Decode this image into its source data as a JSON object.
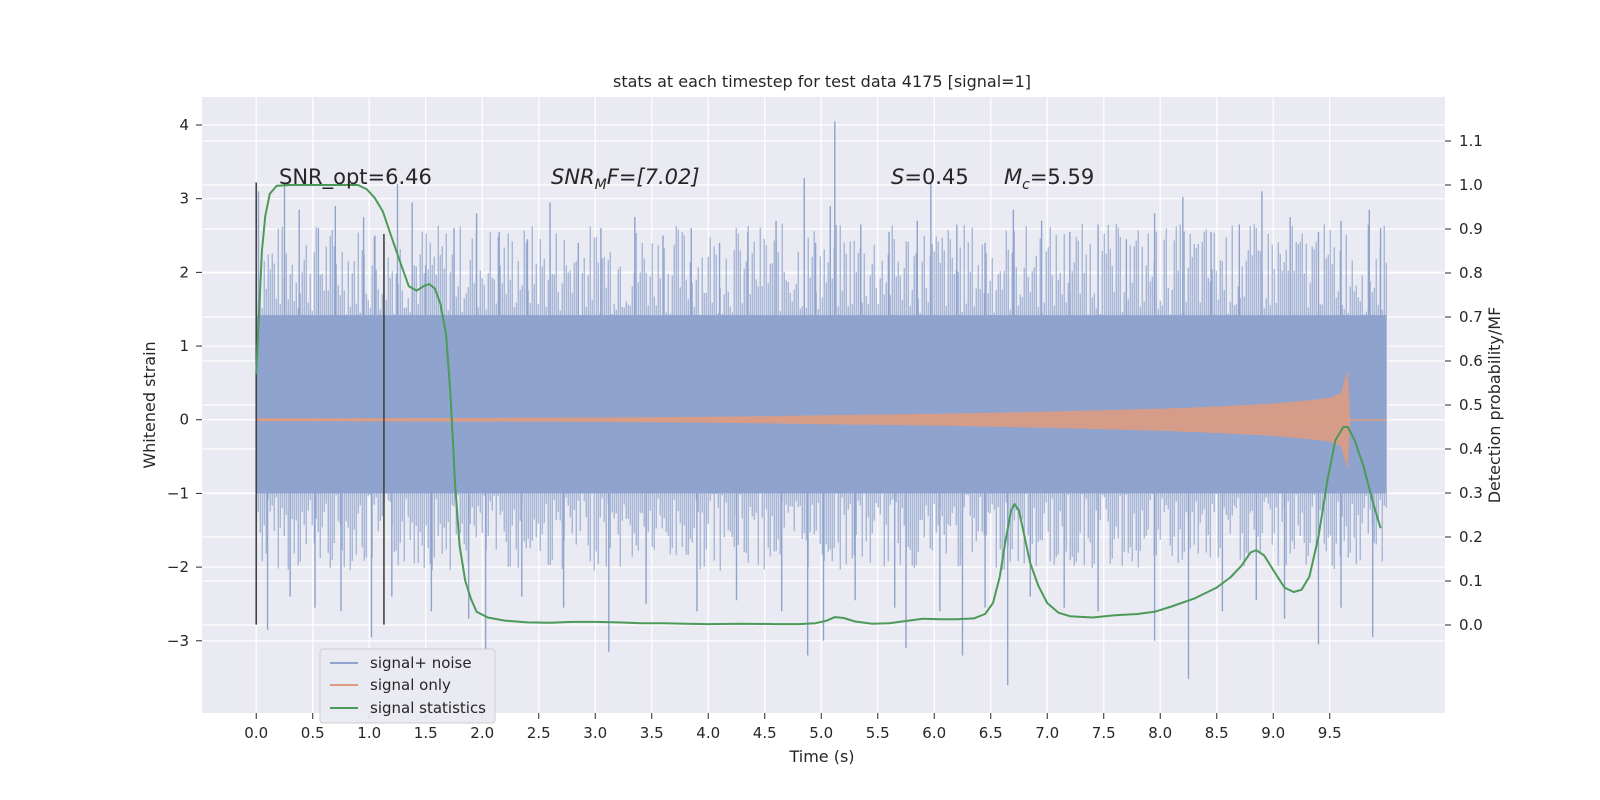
{
  "chart_data": {
    "type": "line",
    "title": "stats at each timestep for test data 4175 [signal=1]",
    "xlabel": "Time (s)",
    "ylabel": "Whitened strain",
    "ylabel_right": "Detection probability/MF",
    "xlim": [
      -0.48,
      10.52
    ],
    "ylim": [
      -3.98,
      4.38
    ],
    "ylim_right": [
      -0.2,
      1.2
    ],
    "x_ticks": [
      "0.0",
      "0.5",
      "1.0",
      "1.5",
      "2.0",
      "2.5",
      "3.0",
      "3.5",
      "4.0",
      "4.5",
      "5.0",
      "5.5",
      "6.0",
      "6.5",
      "7.0",
      "7.5",
      "8.0",
      "8.5",
      "9.0",
      "9.5"
    ],
    "y_ticks": [
      "4",
      "3",
      "2",
      "1",
      "0",
      "−1",
      "−2",
      "−3"
    ],
    "y_ticks_right": [
      "1.1",
      "1.0",
      "0.9",
      "0.8",
      "0.7",
      "0.6",
      "0.5",
      "0.4",
      "0.3",
      "0.2",
      "0.1",
      "0.0"
    ],
    "grid": true,
    "legend_position": "lower-left",
    "annotations": {
      "snr_opt": "SNR_opt=6.46",
      "snr_mf_base": "SNR",
      "snr_mf_sub": "M",
      "snr_mf_rest": "F=[7.02]",
      "s_sym": "S",
      "s_rest": "=0.45",
      "mc_sym": "M",
      "mc_sub": "c",
      "mc_rest": "=5.59"
    },
    "vertical_markers": [
      {
        "x": 0.0,
        "y_range": [
          -2.78,
          3.22
        ]
      },
      {
        "x": 1.13,
        "y_range": [
          -2.78,
          2.52
        ]
      }
    ],
    "series": [
      {
        "name": "signal+ noise",
        "color": "#8ea3cd",
        "axis": "left",
        "x_range": [
          0.0,
          10.0
        ],
        "band": [
          -1.0,
          1.42
        ],
        "spikes_up": [
          [
            0.02,
            3.1
          ],
          [
            0.25,
            3.22
          ],
          [
            0.38,
            2.85
          ],
          [
            0.55,
            2.6
          ],
          [
            0.7,
            2.9
          ],
          [
            0.95,
            2.75
          ],
          [
            1.05,
            2.5
          ],
          [
            1.25,
            3.2
          ],
          [
            1.38,
            2.95
          ],
          [
            1.5,
            2.1
          ],
          [
            1.75,
            2.6
          ],
          [
            1.95,
            2.8
          ],
          [
            2.15,
            2.55
          ],
          [
            2.4,
            2.45
          ],
          [
            2.6,
            2.95
          ],
          [
            2.85,
            2.4
          ],
          [
            3.05,
            2.6
          ],
          [
            3.35,
            2.75
          ],
          [
            3.6,
            2.5
          ],
          [
            3.85,
            2.6
          ],
          [
            4.1,
            2.4
          ],
          [
            4.35,
            2.55
          ],
          [
            4.6,
            2.7
          ],
          [
            4.85,
            3.28
          ],
          [
            4.95,
            2.4
          ],
          [
            5.08,
            2.9
          ],
          [
            5.12,
            4.05
          ],
          [
            5.35,
            2.65
          ],
          [
            5.6,
            2.55
          ],
          [
            5.85,
            2.7
          ],
          [
            5.97,
            3.22
          ],
          [
            6.2,
            2.65
          ],
          [
            6.45,
            2.4
          ],
          [
            6.7,
            2.85
          ],
          [
            6.95,
            2.7
          ],
          [
            7.2,
            2.55
          ],
          [
            7.45,
            2.65
          ],
          [
            7.7,
            2.45
          ],
          [
            7.95,
            2.8
          ],
          [
            8.2,
            3.02
          ],
          [
            8.45,
            2.55
          ],
          [
            8.7,
            2.65
          ],
          [
            8.9,
            3.1
          ],
          [
            9.15,
            2.75
          ],
          [
            9.4,
            2.55
          ],
          [
            9.6,
            2.7
          ],
          [
            9.85,
            2.85
          ],
          [
            9.95,
            2.6
          ]
        ],
        "spikes_down": [
          [
            0.1,
            -2.85
          ],
          [
            0.3,
            -2.4
          ],
          [
            0.52,
            -2.55
          ],
          [
            0.75,
            -2.6
          ],
          [
            1.02,
            -2.95
          ],
          [
            1.2,
            -2.4
          ],
          [
            1.55,
            -2.6
          ],
          [
            1.88,
            -2.7
          ],
          [
            2.03,
            -3.25
          ],
          [
            2.35,
            -2.4
          ],
          [
            2.72,
            -2.55
          ],
          [
            3.12,
            -3.15
          ],
          [
            3.45,
            -2.5
          ],
          [
            3.9,
            -2.6
          ],
          [
            4.25,
            -2.45
          ],
          [
            4.65,
            -2.6
          ],
          [
            4.88,
            -3.2
          ],
          [
            5.02,
            -3.0
          ],
          [
            5.3,
            -2.45
          ],
          [
            5.65,
            -2.55
          ],
          [
            5.75,
            -3.1
          ],
          [
            6.05,
            -2.6
          ],
          [
            6.25,
            -3.2
          ],
          [
            6.45,
            -2.55
          ],
          [
            6.65,
            -3.6
          ],
          [
            6.85,
            -2.4
          ],
          [
            7.15,
            -2.55
          ],
          [
            7.45,
            -2.6
          ],
          [
            7.95,
            -3.0
          ],
          [
            8.25,
            -3.52
          ],
          [
            8.55,
            -2.6
          ],
          [
            8.85,
            -2.45
          ],
          [
            9.1,
            -2.7
          ],
          [
            9.4,
            -3.05
          ],
          [
            9.6,
            -2.55
          ],
          [
            9.88,
            -2.95
          ]
        ]
      },
      {
        "name": "signal only",
        "color": "#dd9c82",
        "axis": "left",
        "x_range": [
          0.0,
          10.0
        ],
        "envelope": [
          [
            0.0,
            0.02
          ],
          [
            2.0,
            0.025
          ],
          [
            3.0,
            0.03
          ],
          [
            4.0,
            0.04
          ],
          [
            5.0,
            0.06
          ],
          [
            6.0,
            0.08
          ],
          [
            7.0,
            0.11
          ],
          [
            8.0,
            0.15
          ],
          [
            8.5,
            0.18
          ],
          [
            9.0,
            0.22
          ],
          [
            9.3,
            0.26
          ],
          [
            9.5,
            0.3
          ],
          [
            9.6,
            0.36
          ],
          [
            9.66,
            0.68
          ],
          [
            9.68,
            0.0
          ],
          [
            10.0,
            0.0
          ]
        ]
      },
      {
        "name": "signal statistics",
        "color": "#4c9a59",
        "axis": "right",
        "points": [
          [
            0.0,
            0.57
          ],
          [
            0.05,
            0.85
          ],
          [
            0.08,
            0.93
          ],
          [
            0.12,
            0.98
          ],
          [
            0.18,
            0.998
          ],
          [
            0.3,
            1.0
          ],
          [
            0.6,
            1.0
          ],
          [
            0.9,
            1.0
          ],
          [
            0.98,
            0.99
          ],
          [
            1.05,
            0.97
          ],
          [
            1.12,
            0.94
          ],
          [
            1.2,
            0.88
          ],
          [
            1.28,
            0.82
          ],
          [
            1.35,
            0.77
          ],
          [
            1.42,
            0.76
          ],
          [
            1.48,
            0.77
          ],
          [
            1.53,
            0.775
          ],
          [
            1.58,
            0.765
          ],
          [
            1.63,
            0.73
          ],
          [
            1.68,
            0.66
          ],
          [
            1.72,
            0.52
          ],
          [
            1.76,
            0.32
          ],
          [
            1.8,
            0.18
          ],
          [
            1.85,
            0.1
          ],
          [
            1.9,
            0.06
          ],
          [
            1.95,
            0.03
          ],
          [
            2.05,
            0.017
          ],
          [
            2.2,
            0.01
          ],
          [
            2.4,
            0.006
          ],
          [
            2.6,
            0.005
          ],
          [
            2.8,
            0.007
          ],
          [
            3.0,
            0.007
          ],
          [
            3.2,
            0.006
          ],
          [
            3.4,
            0.004
          ],
          [
            3.6,
            0.004
          ],
          [
            3.8,
            0.003
          ],
          [
            4.0,
            0.002
          ],
          [
            4.3,
            0.003
          ],
          [
            4.6,
            0.002
          ],
          [
            4.8,
            0.002
          ],
          [
            4.95,
            0.004
          ],
          [
            5.05,
            0.01
          ],
          [
            5.12,
            0.018
          ],
          [
            5.2,
            0.016
          ],
          [
            5.3,
            0.008
          ],
          [
            5.45,
            0.003
          ],
          [
            5.6,
            0.004
          ],
          [
            5.75,
            0.009
          ],
          [
            5.9,
            0.014
          ],
          [
            6.05,
            0.013
          ],
          [
            6.2,
            0.013
          ],
          [
            6.35,
            0.015
          ],
          [
            6.45,
            0.025
          ],
          [
            6.52,
            0.05
          ],
          [
            6.58,
            0.11
          ],
          [
            6.63,
            0.19
          ],
          [
            6.68,
            0.26
          ],
          [
            6.71,
            0.275
          ],
          [
            6.75,
            0.26
          ],
          [
            6.8,
            0.2
          ],
          [
            6.85,
            0.14
          ],
          [
            6.92,
            0.09
          ],
          [
            7.0,
            0.05
          ],
          [
            7.1,
            0.028
          ],
          [
            7.2,
            0.02
          ],
          [
            7.4,
            0.017
          ],
          [
            7.6,
            0.022
          ],
          [
            7.8,
            0.025
          ],
          [
            7.95,
            0.03
          ],
          [
            8.1,
            0.042
          ],
          [
            8.3,
            0.06
          ],
          [
            8.5,
            0.085
          ],
          [
            8.62,
            0.108
          ],
          [
            8.72,
            0.135
          ],
          [
            8.8,
            0.165
          ],
          [
            8.85,
            0.17
          ],
          [
            8.92,
            0.158
          ],
          [
            9.0,
            0.125
          ],
          [
            9.1,
            0.085
          ],
          [
            9.18,
            0.075
          ],
          [
            9.25,
            0.08
          ],
          [
            9.32,
            0.11
          ],
          [
            9.4,
            0.2
          ],
          [
            9.48,
            0.33
          ],
          [
            9.55,
            0.42
          ],
          [
            9.62,
            0.45
          ],
          [
            9.66,
            0.45
          ],
          [
            9.72,
            0.42
          ],
          [
            9.8,
            0.36
          ],
          [
            9.88,
            0.28
          ],
          [
            9.95,
            0.22
          ]
        ]
      }
    ]
  }
}
